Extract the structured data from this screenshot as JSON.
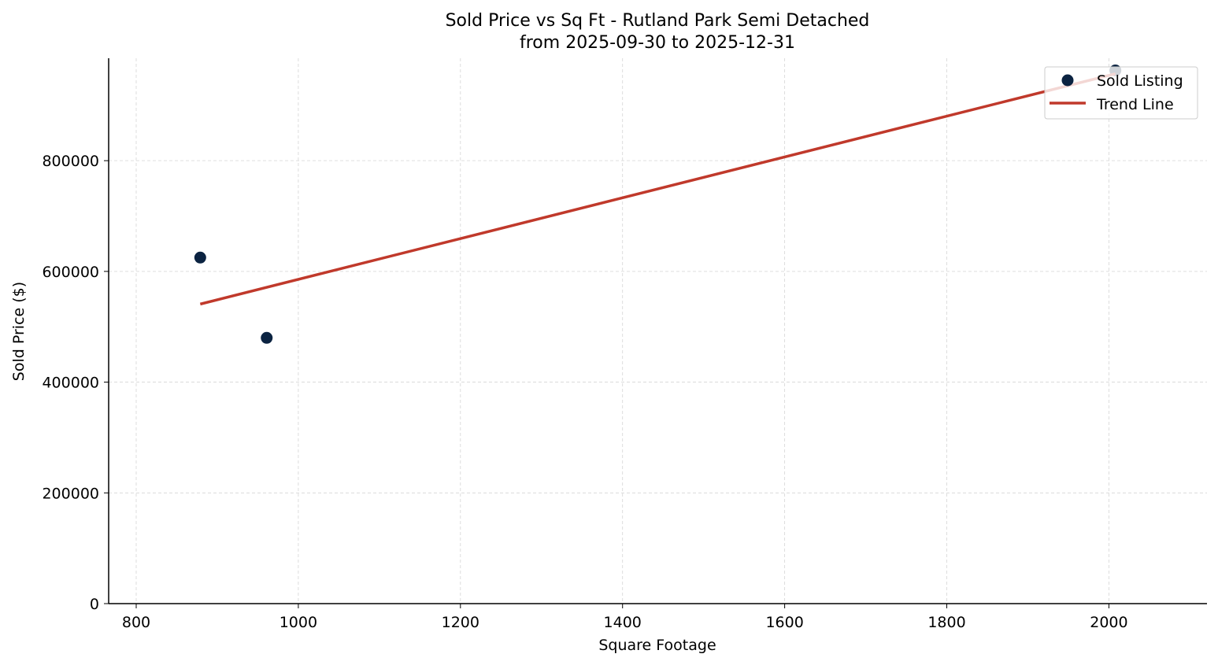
{
  "chart_data": {
    "type": "scatter",
    "title": "Sold Price vs Sq Ft - Rutland Park Semi Detached",
    "subtitle": "from 2025-09-30 to 2025-12-31",
    "xlabel": "Square Footage",
    "ylabel": "Sold Price ($)",
    "xlim": [
      766,
      2121
    ],
    "ylim": [
      0,
      985000
    ],
    "xticks": [
      800,
      1000,
      1200,
      1400,
      1600,
      1800,
      2000
    ],
    "yticks": [
      0,
      200000,
      400000,
      600000,
      800000
    ],
    "grid": true,
    "legend_position": "top-right",
    "series": [
      {
        "name": "Sold Listing",
        "kind": "scatter",
        "color": "#0b2341",
        "points": [
          {
            "x": 879,
            "y": 625000
          },
          {
            "x": 961,
            "y": 480000
          },
          {
            "x": 2008,
            "y": 963000
          }
        ]
      },
      {
        "name": "Trend Line",
        "kind": "line",
        "color": "#c0392b",
        "points": [
          {
            "x": 879,
            "y": 541000
          },
          {
            "x": 2008,
            "y": 957000
          }
        ]
      }
    ]
  }
}
